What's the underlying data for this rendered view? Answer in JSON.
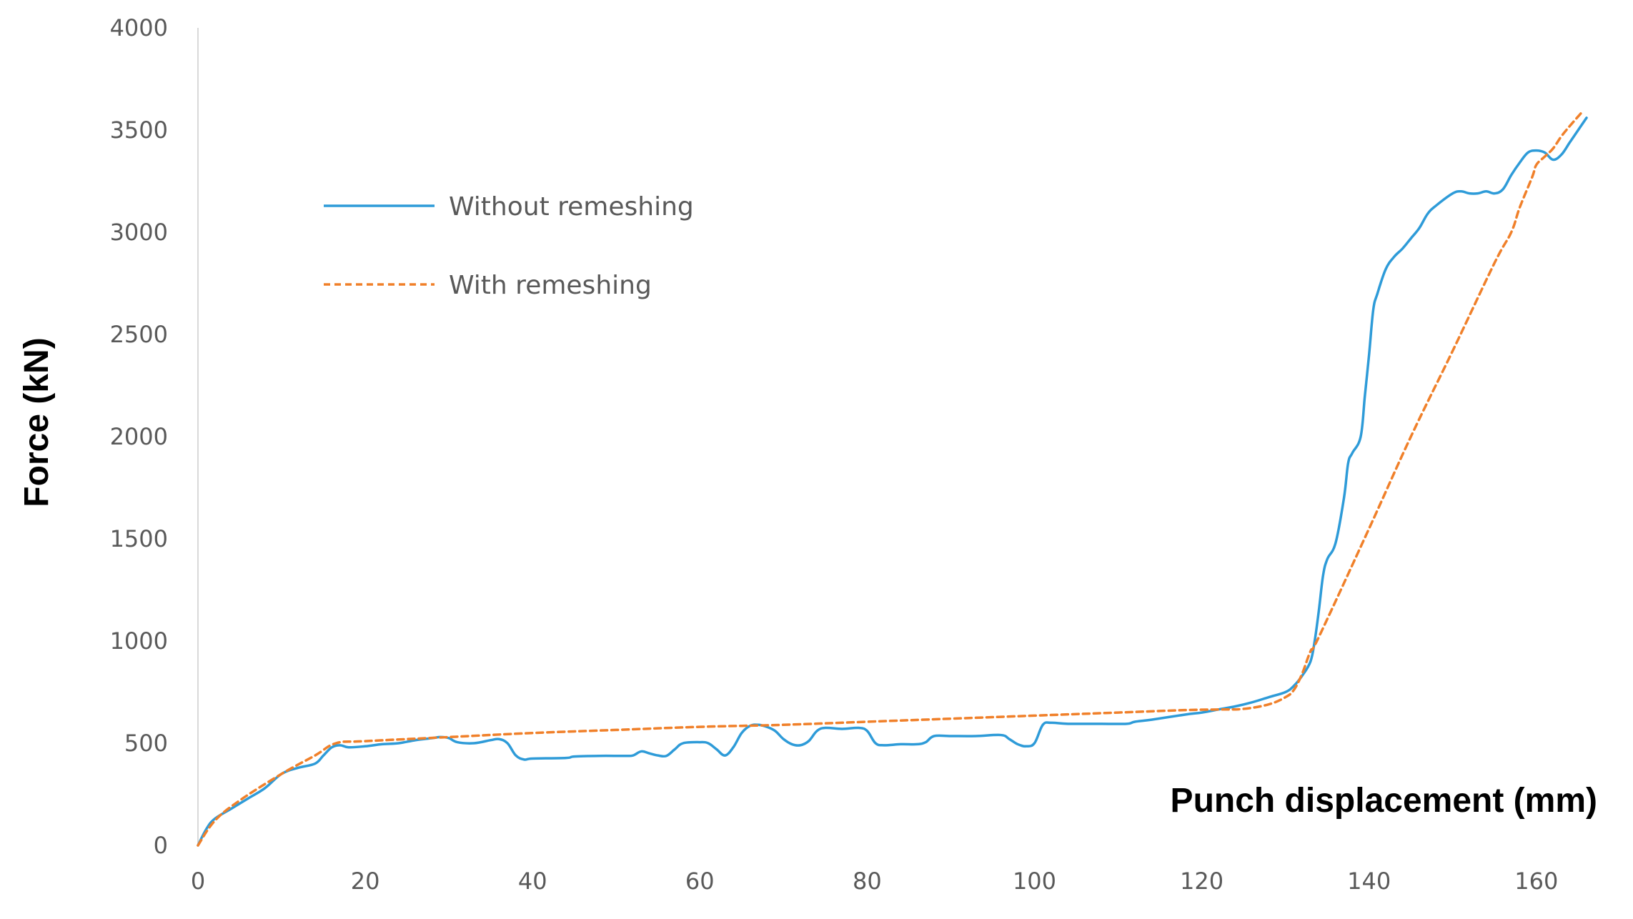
{
  "chart_data": {
    "type": "line",
    "xlabel": "Punch displacement (mm)",
    "ylabel": "Force (kN)",
    "xlim": [
      0,
      166
    ],
    "ylim": [
      0,
      4000
    ],
    "x_ticks": [
      0,
      20,
      40,
      60,
      80,
      100,
      120,
      140,
      160
    ],
    "y_ticks": [
      0,
      500,
      1000,
      1500,
      2000,
      2500,
      3000,
      3500,
      4000
    ],
    "grid": false,
    "legend_position": "top-left",
    "series": [
      {
        "name": "Without remeshing",
        "color": "#2e9bd8",
        "line_style": "solid",
        "points": [
          [
            0,
            0
          ],
          [
            1,
            80
          ],
          [
            2,
            130
          ],
          [
            4,
            180
          ],
          [
            6,
            230
          ],
          [
            8,
            280
          ],
          [
            10,
            350
          ],
          [
            12,
            380
          ],
          [
            14,
            400
          ],
          [
            15,
            440
          ],
          [
            16,
            480
          ],
          [
            17,
            490
          ],
          [
            18,
            480
          ],
          [
            20,
            485
          ],
          [
            22,
            495
          ],
          [
            24,
            500
          ],
          [
            26,
            515
          ],
          [
            28,
            525
          ],
          [
            29,
            530
          ],
          [
            30,
            525
          ],
          [
            31,
            505
          ],
          [
            33,
            500
          ],
          [
            35,
            515
          ],
          [
            36,
            520
          ],
          [
            37,
            500
          ],
          [
            38,
            440
          ],
          [
            39,
            420
          ],
          [
            40,
            425
          ],
          [
            44,
            428
          ],
          [
            45,
            435
          ],
          [
            48,
            438
          ],
          [
            51,
            438
          ],
          [
            52,
            440
          ],
          [
            53,
            460
          ],
          [
            54,
            450
          ],
          [
            55,
            440
          ],
          [
            56,
            438
          ],
          [
            57,
            470
          ],
          [
            58,
            500
          ],
          [
            60,
            505
          ],
          [
            61,
            500
          ],
          [
            62,
            470
          ],
          [
            63,
            440
          ],
          [
            64,
            480
          ],
          [
            65,
            550
          ],
          [
            66,
            585
          ],
          [
            67,
            590
          ],
          [
            68,
            580
          ],
          [
            69,
            560
          ],
          [
            70,
            520
          ],
          [
            71,
            495
          ],
          [
            72,
            490
          ],
          [
            73,
            510
          ],
          [
            74,
            560
          ],
          [
            75,
            575
          ],
          [
            77,
            570
          ],
          [
            79,
            575
          ],
          [
            80,
            560
          ],
          [
            81,
            500
          ],
          [
            82,
            490
          ],
          [
            84,
            495
          ],
          [
            86,
            495
          ],
          [
            87,
            505
          ],
          [
            88,
            535
          ],
          [
            90,
            535
          ],
          [
            93,
            535
          ],
          [
            96,
            540
          ],
          [
            97,
            520
          ],
          [
            98,
            495
          ],
          [
            99,
            485
          ],
          [
            100,
            500
          ],
          [
            101,
            590
          ],
          [
            102,
            600
          ],
          [
            104,
            595
          ],
          [
            108,
            595
          ],
          [
            111,
            595
          ],
          [
            112,
            605
          ],
          [
            114,
            615
          ],
          [
            118,
            640
          ],
          [
            120,
            650
          ],
          [
            122,
            665
          ],
          [
            124,
            680
          ],
          [
            126,
            700
          ],
          [
            128,
            725
          ],
          [
            130,
            750
          ],
          [
            131,
            780
          ],
          [
            132,
            830
          ],
          [
            133,
            900
          ],
          [
            133.5,
            1000
          ],
          [
            134,
            1150
          ],
          [
            134.5,
            1320
          ],
          [
            135,
            1400
          ],
          [
            136,
            1480
          ],
          [
            137,
            1700
          ],
          [
            137.5,
            1870
          ],
          [
            138,
            1920
          ],
          [
            139,
            2000
          ],
          [
            139.5,
            2200
          ],
          [
            140,
            2400
          ],
          [
            140.5,
            2620
          ],
          [
            141,
            2700
          ],
          [
            142,
            2820
          ],
          [
            143,
            2880
          ],
          [
            144,
            2920
          ],
          [
            145,
            2970
          ],
          [
            146,
            3020
          ],
          [
            147,
            3090
          ],
          [
            148,
            3130
          ],
          [
            150,
            3190
          ],
          [
            151,
            3200
          ],
          [
            152,
            3190
          ],
          [
            153,
            3190
          ],
          [
            154,
            3200
          ],
          [
            155,
            3190
          ],
          [
            156,
            3210
          ],
          [
            157,
            3280
          ],
          [
            158,
            3340
          ],
          [
            159,
            3390
          ],
          [
            160,
            3400
          ],
          [
            161,
            3390
          ],
          [
            162,
            3355
          ],
          [
            163,
            3380
          ],
          [
            164,
            3440
          ],
          [
            165,
            3500
          ],
          [
            166,
            3560
          ]
        ]
      },
      {
        "name": "With remeshing",
        "color": "#f0802a",
        "line_style": "dashed",
        "points": [
          [
            0,
            0
          ],
          [
            2,
            120
          ],
          [
            5,
            220
          ],
          [
            10,
            350
          ],
          [
            14,
            440
          ],
          [
            16.5,
            500
          ],
          [
            20,
            510
          ],
          [
            30,
            530
          ],
          [
            40,
            550
          ],
          [
            50,
            565
          ],
          [
            60,
            580
          ],
          [
            70,
            590
          ],
          [
            80,
            605
          ],
          [
            90,
            620
          ],
          [
            100,
            635
          ],
          [
            110,
            650
          ],
          [
            118,
            662
          ],
          [
            122,
            665
          ],
          [
            125,
            668
          ],
          [
            128,
            690
          ],
          [
            130,
            725
          ],
          [
            131,
            760
          ],
          [
            132,
            840
          ],
          [
            133,
            950
          ],
          [
            134,
            1020
          ],
          [
            140,
            1550
          ],
          [
            145,
            2000
          ],
          [
            150,
            2420
          ],
          [
            155,
            2850
          ],
          [
            157,
            3000
          ],
          [
            158,
            3120
          ],
          [
            159.5,
            3270
          ],
          [
            160,
            3330
          ],
          [
            161,
            3370
          ],
          [
            162,
            3410
          ],
          [
            163,
            3470
          ],
          [
            164,
            3520
          ],
          [
            165.5,
            3590
          ]
        ]
      }
    ]
  }
}
